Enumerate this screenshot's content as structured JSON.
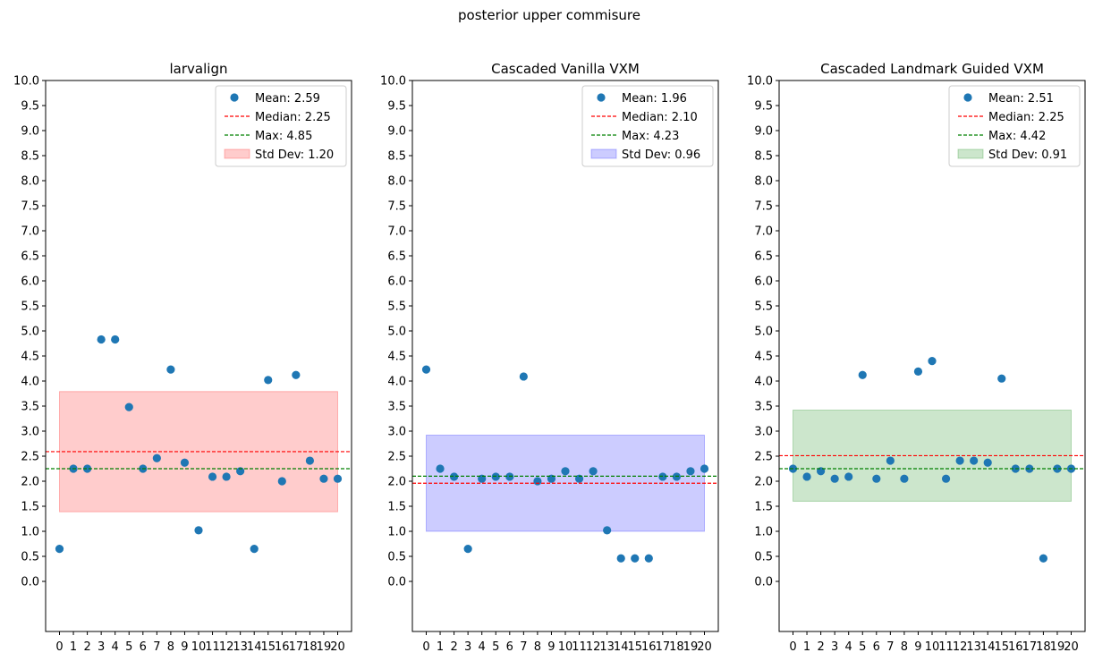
{
  "suptitle": "posterior upper commisure",
  "chart_data": [
    {
      "type": "scatter",
      "title": "larvalign",
      "x": [
        0,
        1,
        2,
        3,
        4,
        5,
        6,
        7,
        8,
        9,
        10,
        11,
        12,
        13,
        14,
        15,
        16,
        17,
        18,
        19,
        20
      ],
      "values": [
        0.65,
        2.25,
        2.25,
        4.83,
        4.83,
        3.48,
        2.25,
        2.46,
        4.23,
        2.37,
        1.02,
        2.09,
        2.09,
        2.2,
        0.65,
        4.02,
        2.0,
        4.12,
        2.41,
        2.05,
        2.05
      ],
      "mean": 2.59,
      "median": 2.25,
      "max": 4.85,
      "std": 1.2,
      "legend": [
        "Mean: 2.59",
        "Median: 2.25",
        "Max: 4.85",
        "Std Dev: 1.20"
      ],
      "band_color": "#ff0000",
      "ylim": [
        -1.0,
        10.0
      ],
      "yticks": [
        "0.0",
        "0.5",
        "1.0",
        "1.5",
        "2.0",
        "2.5",
        "3.0",
        "3.5",
        "4.0",
        "4.5",
        "5.0",
        "5.5",
        "6.0",
        "6.5",
        "7.0",
        "7.5",
        "8.0",
        "8.5",
        "9.0",
        "9.5",
        "10.0"
      ],
      "legend_loc": "upper right"
    },
    {
      "type": "scatter",
      "title": "Cascaded Vanilla VXM",
      "x": [
        0,
        1,
        2,
        3,
        4,
        5,
        6,
        7,
        8,
        9,
        10,
        11,
        12,
        13,
        14,
        15,
        16,
        17,
        18,
        19,
        20
      ],
      "values": [
        4.23,
        2.25,
        2.09,
        0.65,
        2.05,
        2.09,
        2.09,
        4.09,
        2.0,
        2.05,
        2.2,
        2.05,
        2.2,
        1.02,
        0.46,
        0.46,
        0.46,
        2.09,
        2.09,
        2.2,
        2.25
      ],
      "mean": 1.96,
      "median": 2.1,
      "max": 4.23,
      "std": 0.96,
      "legend": [
        "Mean: 1.96",
        "Median: 2.10",
        "Max: 4.23",
        "Std Dev: 0.96"
      ],
      "band_color": "#0000ff",
      "ylim": [
        -1.0,
        10.0
      ],
      "yticks": [
        "0.0",
        "0.5",
        "1.0",
        "1.5",
        "2.0",
        "2.5",
        "3.0",
        "3.5",
        "4.0",
        "4.5",
        "5.0",
        "5.5",
        "6.0",
        "6.5",
        "7.0",
        "7.5",
        "8.0",
        "8.5",
        "9.0",
        "9.5",
        "10.0"
      ],
      "legend_loc": "upper right"
    },
    {
      "type": "scatter",
      "title": "Cascaded Landmark Guided VXM",
      "x": [
        0,
        1,
        2,
        3,
        4,
        5,
        6,
        7,
        8,
        9,
        10,
        11,
        12,
        13,
        14,
        15,
        16,
        17,
        18,
        19,
        20
      ],
      "values": [
        2.25,
        2.09,
        2.2,
        2.05,
        2.09,
        4.12,
        2.05,
        2.41,
        2.05,
        4.19,
        4.4,
        2.05,
        2.41,
        2.41,
        2.37,
        4.05,
        2.25,
        2.25,
        0.46,
        2.25,
        2.25
      ],
      "mean": 2.51,
      "median": 2.25,
      "max": 4.42,
      "std": 0.91,
      "legend": [
        "Mean: 2.51",
        "Median: 2.25",
        "Max: 4.42",
        "Std Dev: 0.91"
      ],
      "band_color": "#008000",
      "ylim": [
        -1.0,
        10.0
      ],
      "yticks": [
        "0.0",
        "0.5",
        "1.0",
        "1.5",
        "2.0",
        "2.5",
        "3.0",
        "3.5",
        "4.0",
        "4.5",
        "5.0",
        "5.5",
        "6.0",
        "6.5",
        "7.0",
        "7.5",
        "8.0",
        "8.5",
        "9.0",
        "9.5",
        "10.0"
      ],
      "legend_loc": "upper right"
    }
  ],
  "colors": {
    "points": "#1f77b4",
    "mean_line": "#ff0000",
    "max_line": "#008000"
  }
}
